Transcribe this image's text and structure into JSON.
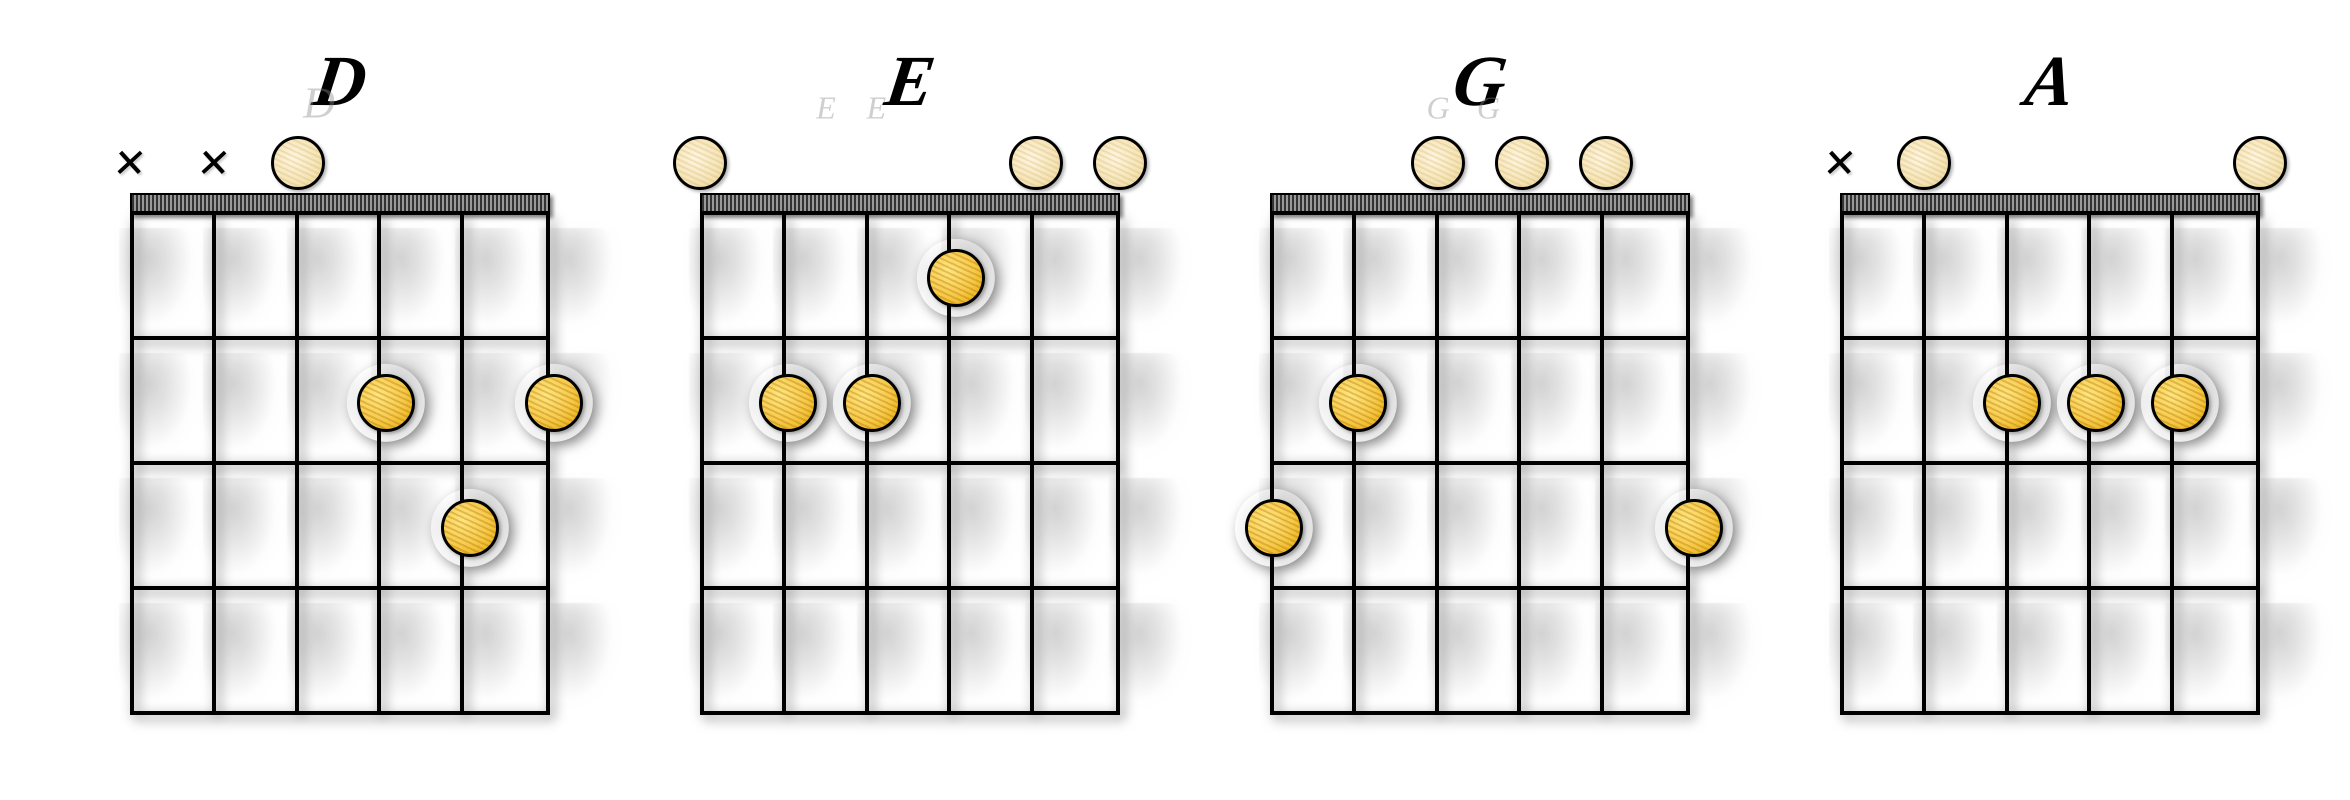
{
  "layout": {
    "strings": 6,
    "frets": 4,
    "board_width": 420,
    "fret_height": 125,
    "total_width": 2350,
    "total_height": 800,
    "marker_open_diameter": 54,
    "marker_fret_diameter": 58,
    "mute_fontsize": 56,
    "name_fontsize": 72
  },
  "colors": {
    "open_fill": "#f5e4b8",
    "fret_fill": "#f7c948",
    "stroke": "#000000",
    "nut_dark": "#333333",
    "nut_light": "#999999",
    "background": "transparent"
  },
  "chords": [
    {
      "name": "D",
      "mutes": [
        1,
        2
      ],
      "opens": [
        3
      ],
      "fingers": [
        {
          "string": 4,
          "fret": 2
        },
        {
          "string": 6,
          "fret": 2
        },
        {
          "string": 5,
          "fret": 3
        }
      ]
    },
    {
      "name": "E",
      "mutes": [],
      "opens": [
        1,
        5,
        6
      ],
      "fingers": [
        {
          "string": 4,
          "fret": 1
        },
        {
          "string": 2,
          "fret": 2
        },
        {
          "string": 3,
          "fret": 2
        }
      ]
    },
    {
      "name": "G",
      "mutes": [],
      "opens": [
        3,
        4,
        5
      ],
      "fingers": [
        {
          "string": 2,
          "fret": 2
        },
        {
          "string": 1,
          "fret": 3
        },
        {
          "string": 6,
          "fret": 3
        }
      ]
    },
    {
      "name": "A",
      "mutes": [
        1
      ],
      "opens": [
        2,
        6
      ],
      "fingers": [
        {
          "string": 3,
          "fret": 2
        },
        {
          "string": 4,
          "fret": 2
        },
        {
          "string": 5,
          "fret": 2
        }
      ]
    }
  ]
}
